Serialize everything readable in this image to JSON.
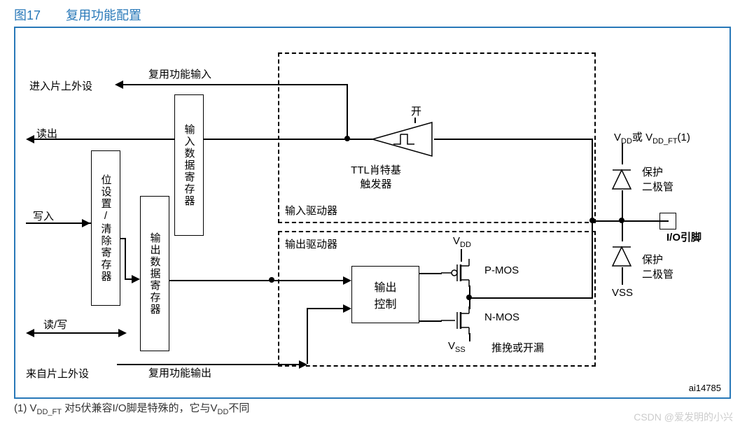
{
  "figure": {
    "title": "图17　　复用功能配置",
    "footnote_html": "(1) V<sub>DD_FT</sub> 对5伏兼容I/O脚是特殊的，它与V<sub>DD</sub>不同",
    "watermark": "CSDN @爱发明的小兴",
    "doc_ref": "ai14785"
  },
  "labels": {
    "alt_func_input": "复用功能输入",
    "to_peripheral": "进入片上外设",
    "read": "读出",
    "write": "写入",
    "read_write": "读/写",
    "from_peripheral": "来自片上外设",
    "alt_func_output": "复用功能输出",
    "on": "开",
    "schmitt": "TTL肖特基",
    "trigger": "触发器",
    "input_driver": "输入驱动器",
    "output_driver": "输出驱动器",
    "output_ctrl": "输出\n控制",
    "pmos": "P-MOS",
    "nmos": "N-MOS",
    "vdd": "V",
    "vdd_sub": "DD",
    "vss": "V",
    "vss_sub": "SS",
    "push_pull": "推挽或开漏",
    "vdd_or": "V<sub>DD</sub>或 V<sub>DD_FT</sub>(1)",
    "prot_diode": "保护\n二极管",
    "io_pin": "I/O引脚",
    "vss_bottom": "VSS"
  },
  "registers": {
    "bit_set_reset": "位设置/清除寄存器",
    "input_data": "输入数据寄存器",
    "output_data": "输出数据寄存器"
  },
  "colors": {
    "title_color": "#2878b8",
    "border_color": "#2878b8",
    "line_color": "#000000",
    "background": "#ffffff"
  }
}
